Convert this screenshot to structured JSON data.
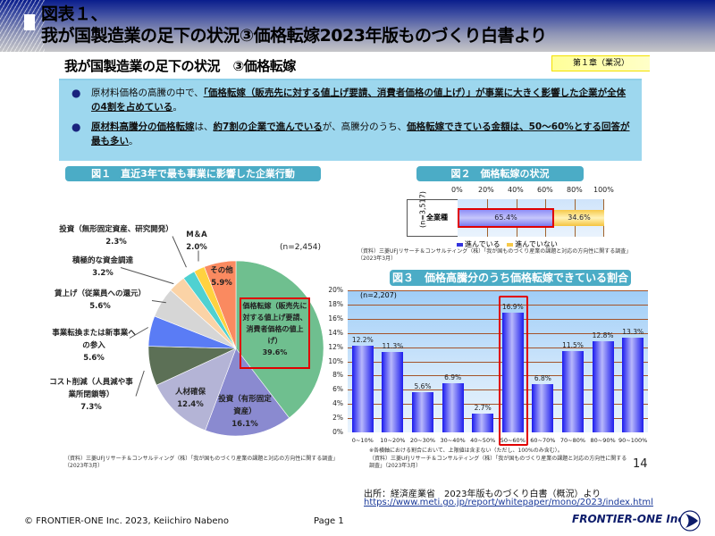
{
  "header": {
    "title_line1": "図表１、",
    "title_line2": "我が国製造業の足下の状況③価格転嫁2023年版ものづくり白書より"
  },
  "subtitle": "我が国製造業の足下の状況　③価格転嫁",
  "chapter_badge": "第１章（業況）",
  "summary": {
    "bullets": [
      {
        "plain1": "原材料価格の高騰の中で、",
        "underline1": "「価格転嫁（販売先に対する値上げ要請、消費者価格の値上げ）」が事業に大きく影響した企業が全体の4割を占めている",
        "plain2": "。"
      },
      {
        "underline1": "原材料高騰分の価格転嫁",
        "plain1": "は、",
        "underline2": "約7割の企業で進んでいる",
        "plain2": "が、高騰分のうち、",
        "underline3": "価格転嫁できている金額は、50～60%とする回答が最も多い",
        "plain3": "。"
      }
    ]
  },
  "fig1": {
    "label": "図１　直近3年で最も事業に影響した企業行動",
    "n": "(n=2,454)",
    "source": "（資料）三菱UFJリサーチ＆コンサルティング（株）「我が国ものづくり産業の課題と対応の方向性に関する調査」（2023年3月）"
  },
  "fig2": {
    "label": "図２　価格転嫁の状況",
    "n": "(n=3,517)",
    "category": "全業種",
    "legend_yes": "進んでいる",
    "legend_no": "進んでいない",
    "source": "（資料）三菱UFJリサーチ＆コンサルティング（株）「我が国ものづくり産業の課題と対応の方向性に関する調査」（2023年3月）"
  },
  "fig3": {
    "label": "図３　価格高騰分のうち価格転嫁できている割合",
    "n": "(n=2,207)",
    "note": "※各横軸における割合において、上限値は含まない（ただし、100%のみ含む）。",
    "source": "（資料）三菱UFJリサーチ＆コンサルティング（株）「我が国ものづくり産業の課題と対応の方向性に関する調査」（2023年3月）",
    "page_number": "14"
  },
  "chart_data": [
    {
      "type": "pie",
      "title": "図１　直近3年で最も事業に影響した企業行動",
      "n": "n=2,454",
      "categories": [
        "価格転嫁（販売先に対する値上げ要請、消費者価格の値上げ）",
        "投資（有形固定資産）",
        "人材確保",
        "コスト削減（人員減や事業所閉鎖等）",
        "事業転換または新事業への参入",
        "賃上げ（従業員への還元）",
        "積極的な資金調達",
        "投資（無形固定資産、研究開発）",
        "M＆A",
        "その他"
      ],
      "values": [
        39.6,
        16.1,
        12.4,
        7.3,
        5.6,
        5.6,
        3.2,
        2.3,
        2.0,
        5.9
      ],
      "value_labels": [
        "39.6%",
        "16.1%",
        "12.4%",
        "7.3%",
        "5.6%",
        "5.6%",
        "3.2%",
        "2.3%",
        "2.0%",
        "5.9%"
      ],
      "colors": [
        "#6fbf8f",
        "#8a8ad0",
        "#b4b4d6",
        "#5c7056",
        "#5a7cf5",
        "#d6d6d6",
        "#fbd3a6",
        "#4fd1d1",
        "#ffd23f",
        "#fa8a60"
      ],
      "highlight": "価格転嫁（販売先に対する値上げ要請、消費者価格の値上げ）"
    },
    {
      "type": "bar",
      "orientation": "horizontal-stacked",
      "title": "図２　価格転嫁の状況",
      "n": "n=3,517",
      "categories": [
        "全業種"
      ],
      "series": [
        {
          "name": "進んでいる",
          "values": [
            65.4
          ],
          "label": "65.4%",
          "color": "#8f8ff7"
        },
        {
          "name": "進んでいない",
          "values": [
            34.6
          ],
          "label": "34.6%",
          "color": "#f7c94a"
        }
      ],
      "xticks": [
        "0%",
        "20%",
        "40%",
        "60%",
        "80%",
        "100%"
      ],
      "xlim": [
        0,
        100
      ],
      "legend_position": "bottom",
      "grid": true
    },
    {
      "type": "bar",
      "title": "図３　価格高騰分のうち価格転嫁できている割合",
      "n": "n=2,207",
      "categories": [
        "0~10%",
        "10~20%",
        "20~30%",
        "30~40%",
        "40~50%",
        "50~60%",
        "60~70%",
        "70~80%",
        "80~90%",
        "90~100%"
      ],
      "values": [
        12.2,
        11.3,
        5.6,
        6.9,
        2.7,
        16.9,
        6.8,
        11.5,
        12.8,
        13.3
      ],
      "value_labels": [
        "12.2%",
        "11.3%",
        "5.6%",
        "6.9%",
        "2.7%",
        "16.9%",
        "6.8%",
        "11.5%",
        "12.8%",
        "13.3%"
      ],
      "yticks": [
        "0%",
        "2%",
        "4%",
        "6%",
        "8%",
        "10%",
        "12%",
        "14%",
        "16%",
        "18%",
        "20%"
      ],
      "ylim": [
        0,
        20
      ],
      "ylabel": "",
      "xlabel": "",
      "grid": true,
      "highlight": "50~60%",
      "color": "#1a1aee"
    }
  ],
  "footer": {
    "source_line": "出所：経済産業省　2023年版ものづくり白書（概況）より",
    "source_url": "https://www.meti.go.jp/report/whitepaper/mono/2023/index.html",
    "copyright": "© FRONTIER-ONE Inc. 2023,  Keiichiro  Nabeno",
    "page": "Page 1",
    "logo_text": "FRONTIER-ONE Inc."
  }
}
